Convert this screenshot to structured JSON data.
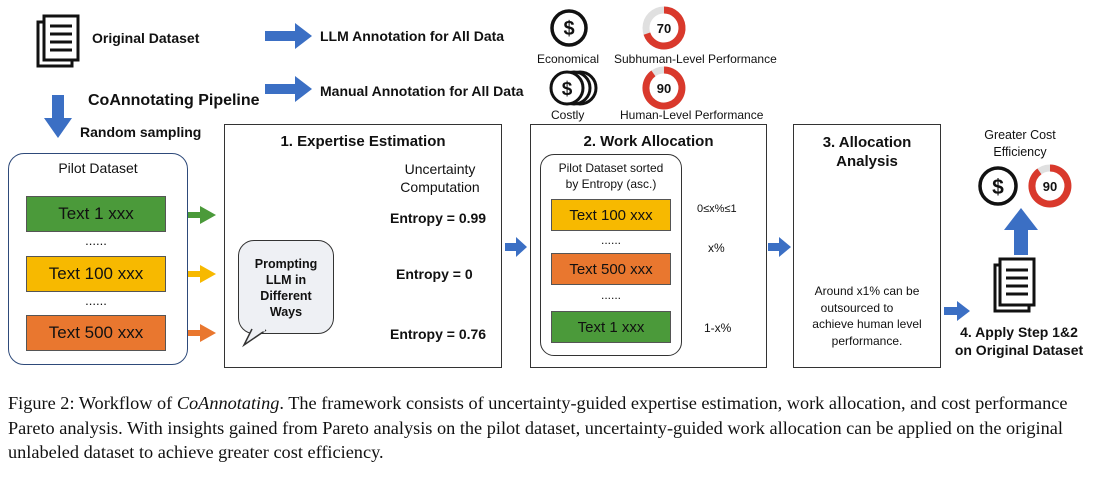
{
  "legend": {
    "original_dataset": "Original Dataset",
    "llm_annotation": "LLM Annotation for All Data",
    "manual_annotation": "Manual Annotation for All Data",
    "pipeline": "CoAnnotating Pipeline",
    "random_sampling": "Random sampling",
    "economical": "Economical",
    "costly": "Costly",
    "subhuman_score": "70",
    "subhuman_label": "Subhuman-Level Performance",
    "human_score": "90",
    "human_label": "Human-Level Performance"
  },
  "pilot": {
    "title": "Pilot Dataset",
    "items": [
      "Text 1 xxx",
      "Text 100 xxx",
      "Text 500 xxx"
    ],
    "ellipsis": "......"
  },
  "step1": {
    "title": "1. Expertise Estimation",
    "uncertainty_line1": "Uncertainty",
    "uncertainty_line2": "Computation",
    "prompt_bubble": [
      "Prompting",
      "LLM in",
      "Different",
      "Ways"
    ],
    "entropies": [
      "Entropy = 0.99",
      "Entropy = 0",
      "Entropy = 0.76"
    ]
  },
  "step2": {
    "title": "2. Work Allocation",
    "sorted_line1": "Pilot Dataset sorted",
    "sorted_line2": "by Entropy (asc.)",
    "items": [
      "Text 100 xxx",
      "Text 500 xxx",
      "Text 1 xxx"
    ],
    "ellipsis": "......",
    "range_label": "0≤x%≤1",
    "llm_share": "x%",
    "human_share": "1-x%"
  },
  "step3": {
    "title_line1": "3. Allocation",
    "title_line2": "Analysis",
    "note": [
      "Around x1% can be",
      "outsourced to",
      "achieve human level",
      "performance."
    ]
  },
  "step4": {
    "title_line1": "4. Apply Step 1&2",
    "title_line2": "on Original Dataset",
    "efficiency_line1": "Greater Cost",
    "efficiency_line2": "Efficiency",
    "score": "90"
  },
  "caption": {
    "prefix": "Figure 2: Workflow of ",
    "name": "CoAnnotating",
    "body": ". The framework consists of uncertainty-guided expertise estimation, work allocation, and cost performance Pareto analysis. With insights gained from Pareto analysis on the pilot dataset, uncertainty-guided work allocation can be applied on the original unlabeled dataset to achieve greater cost efficiency."
  },
  "colors": {
    "blue_arrow": "#3b6fc4",
    "green": "#4b9a3a",
    "yellow": "#f7b900",
    "orange": "#e9772f",
    "red_ring": "#d9392c",
    "gpt_teal": "#6aa596"
  }
}
